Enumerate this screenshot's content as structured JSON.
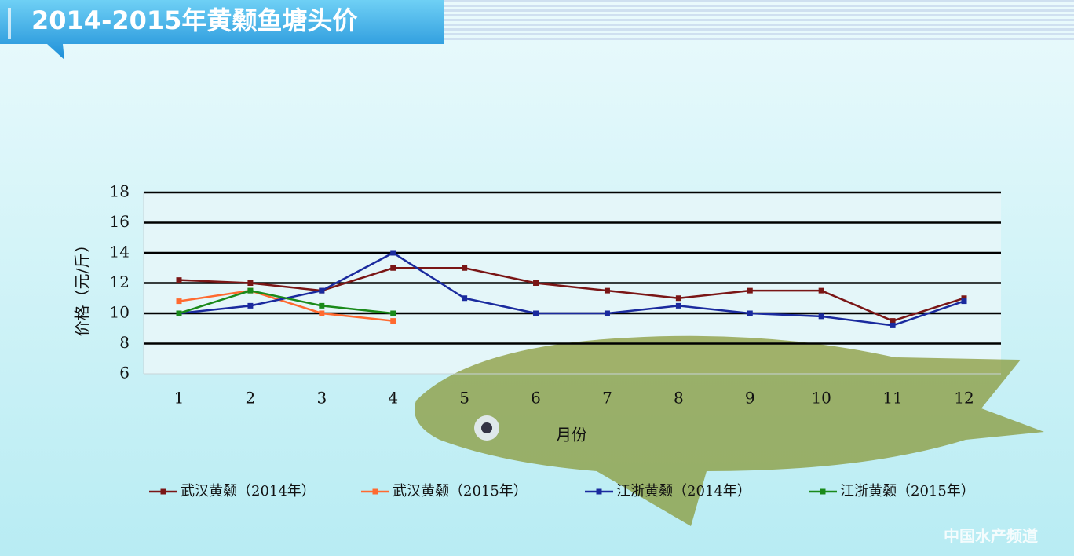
{
  "chart_data": {
    "type": "line",
    "title": "2014-2015年黄颡鱼塘头价",
    "y_label": "价格（元/斤）",
    "x_label": "月份",
    "watermark": "中国水产频道",
    "categories": [
      "1",
      "2",
      "3",
      "4",
      "5",
      "6",
      "7",
      "8",
      "9",
      "10",
      "11",
      "12"
    ],
    "series": [
      {
        "name": "武汉黄颡（2014年）",
        "color": "#7a1616",
        "values": [
          12.2,
          12,
          11.5,
          13,
          13,
          12,
          11.5,
          11,
          11.5,
          11.5,
          9.5,
          11
        ]
      },
      {
        "name": "武汉黄颡（2015年）",
        "color": "#ff6a30",
        "values": [
          10.8,
          11.5,
          10,
          9.5,
          null,
          null,
          null,
          null,
          null,
          null,
          null,
          null
        ]
      },
      {
        "name": "江浙黄颡（2014年）",
        "color": "#1a2a9e",
        "values": [
          10,
          10.5,
          11.5,
          14,
          11,
          10,
          10,
          10.5,
          10,
          9.8,
          9.2,
          10.8
        ]
      },
      {
        "name": "江浙黄颡（2015年）",
        "color": "#1a8a1a",
        "values": [
          10,
          11.5,
          10.5,
          10,
          null,
          null,
          null,
          null,
          null,
          null,
          null,
          null
        ]
      }
    ],
    "ylim": [
      6,
      18
    ],
    "yticks": [
      6,
      8,
      10,
      12,
      14,
      16,
      18
    ],
    "grid": true,
    "legend": "bottom"
  }
}
